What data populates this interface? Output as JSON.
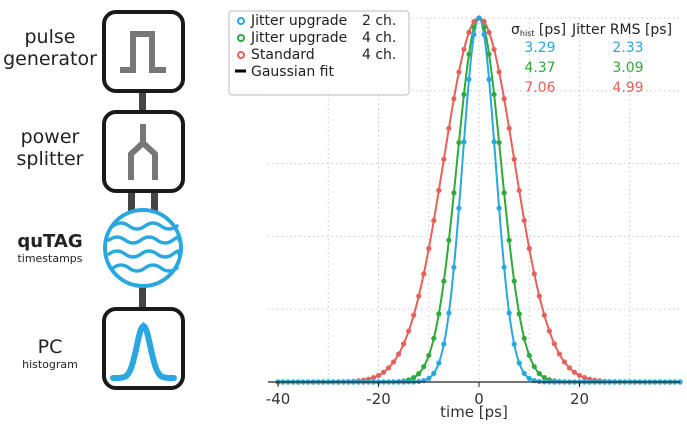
{
  "diagram": {
    "blocks": [
      {
        "label": "pulse",
        "label2": "generator",
        "sub": "",
        "icon": "pulse-icon"
      },
      {
        "label": "power",
        "label2": "splitter",
        "sub": "",
        "icon": "splitter-icon"
      },
      {
        "label": "quTAG",
        "label2": "",
        "sub": "timestamps",
        "icon": "waves-icon"
      },
      {
        "label": "PC",
        "label2": "",
        "sub": "histogram",
        "icon": "gaussian-icon"
      }
    ]
  },
  "colors": {
    "upgrade2": "#29a8e0",
    "upgrade4": "#2eaa3c",
    "standard": "#e8605a",
    "fit": "#000000",
    "frame": "#1a1a1a",
    "connector": "#444444",
    "icon_gray": "#777777"
  },
  "chart_data": {
    "type": "scatter",
    "xlabel": "time [ps]",
    "ylabel": "",
    "xlim": [
      -42,
      40
    ],
    "ylim": [
      0,
      1.0
    ],
    "xticks": [
      -40,
      -20,
      0,
      20
    ],
    "grid": true,
    "legend_position": "top-left",
    "fit_label": "Gaussian fit",
    "table_headers": {
      "sigma": "σ",
      "sigma_sub": "hist",
      "sigma_unit": " [ps]",
      "rms": "Jitter RMS [ps]"
    },
    "series": [
      {
        "name": "Jitter upgrade",
        "channels": "2 ch.",
        "color": "#29a8e0",
        "sigma_hist": "3.29",
        "jitter_rms": "2.33",
        "sigma": 3.29
      },
      {
        "name": "Jitter upgrade",
        "channels": "4 ch.",
        "color": "#2eaa3c",
        "sigma_hist": "4.37",
        "jitter_rms": "3.09",
        "sigma": 4.37
      },
      {
        "name": "Standard",
        "channels": "4 ch.",
        "color": "#e8605a",
        "sigma_hist": "7.06",
        "jitter_rms": "4.99",
        "sigma": 7.06
      }
    ],
    "x_step": 1,
    "x_start": -40,
    "x_end": 40
  }
}
